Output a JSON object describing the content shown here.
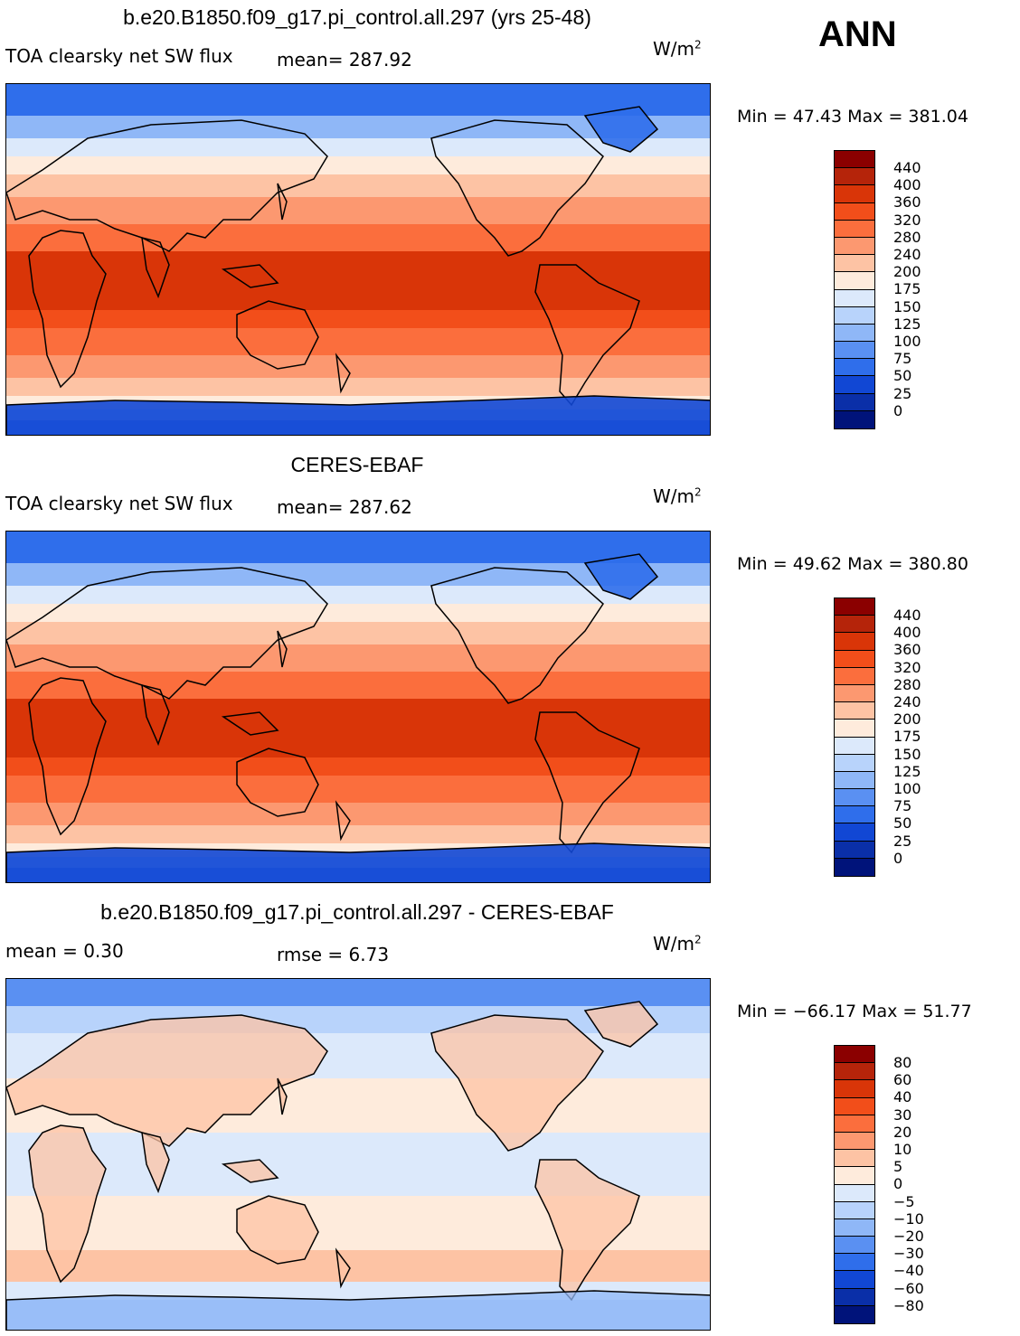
{
  "season": "ANN",
  "panels": [
    {
      "title": "b.e20.B1850.f09_g17.pi_control.all.297 (yrs 25-48)",
      "left_label": "TOA clearsky net SW flux",
      "stat1": "mean=  287.92",
      "stat2": "",
      "units_base": "W/m",
      "units_exp": "2",
      "minmax": "Min =   47.43  Max  =  381.04",
      "colorbar": {
        "colors": [
          "#8b0000",
          "#b5240a",
          "#d93508",
          "#f24e1a",
          "#fb6e3d",
          "#fc9870",
          "#fdc3a4",
          "#feebdc",
          "#dce9fb",
          "#b8d3fb",
          "#8fb7f7",
          "#5a90f2",
          "#2f6eeb",
          "#1147d4",
          "#0a2fa8",
          "#00137a"
        ],
        "ticks": [
          "440",
          "400",
          "360",
          "320",
          "280",
          "240",
          "200",
          "175",
          "150",
          "125",
          "100",
          "75",
          "50",
          "25",
          "0"
        ]
      },
      "map_style": "model"
    },
    {
      "title": "CERES-EBAF",
      "left_label": "TOA clearsky net SW flux",
      "stat1": "mean=  287.62",
      "stat2": "",
      "units_base": "W/m",
      "units_exp": "2",
      "minmax": "Min =   49.62  Max  =  380.80",
      "colorbar": {
        "colors": [
          "#8b0000",
          "#b5240a",
          "#d93508",
          "#f24e1a",
          "#fb6e3d",
          "#fc9870",
          "#fdc3a4",
          "#feebdc",
          "#dce9fb",
          "#b8d3fb",
          "#8fb7f7",
          "#5a90f2",
          "#2f6eeb",
          "#1147d4",
          "#0a2fa8",
          "#00137a"
        ],
        "ticks": [
          "440",
          "400",
          "360",
          "320",
          "280",
          "240",
          "200",
          "175",
          "150",
          "125",
          "100",
          "75",
          "50",
          "25",
          "0"
        ]
      },
      "map_style": "obs"
    },
    {
      "title": "b.e20.B1850.f09_g17.pi_control.all.297 - CERES-EBAF",
      "left_label": "mean =     0.30",
      "stat1": "rmse =     6.73",
      "stat2": "",
      "units_base": "W/m",
      "units_exp": "2",
      "minmax": "Min = −66.17  Max  =   51.77",
      "colorbar": {
        "colors": [
          "#8b0000",
          "#b5240a",
          "#d93508",
          "#f24e1a",
          "#fb6e3d",
          "#fc9870",
          "#fdc3a4",
          "#feebdc",
          "#dce9fb",
          "#b8d3fb",
          "#8fb7f7",
          "#5a90f2",
          "#2f6eeb",
          "#1147d4",
          "#0a2fa8",
          "#00137a"
        ],
        "ticks": [
          "80",
          "60",
          "40",
          "30",
          "20",
          "10",
          "5",
          "0",
          "−5",
          "−10",
          "−20",
          "−30",
          "−40",
          "−60",
          "−80"
        ]
      },
      "map_style": "diff"
    }
  ]
}
